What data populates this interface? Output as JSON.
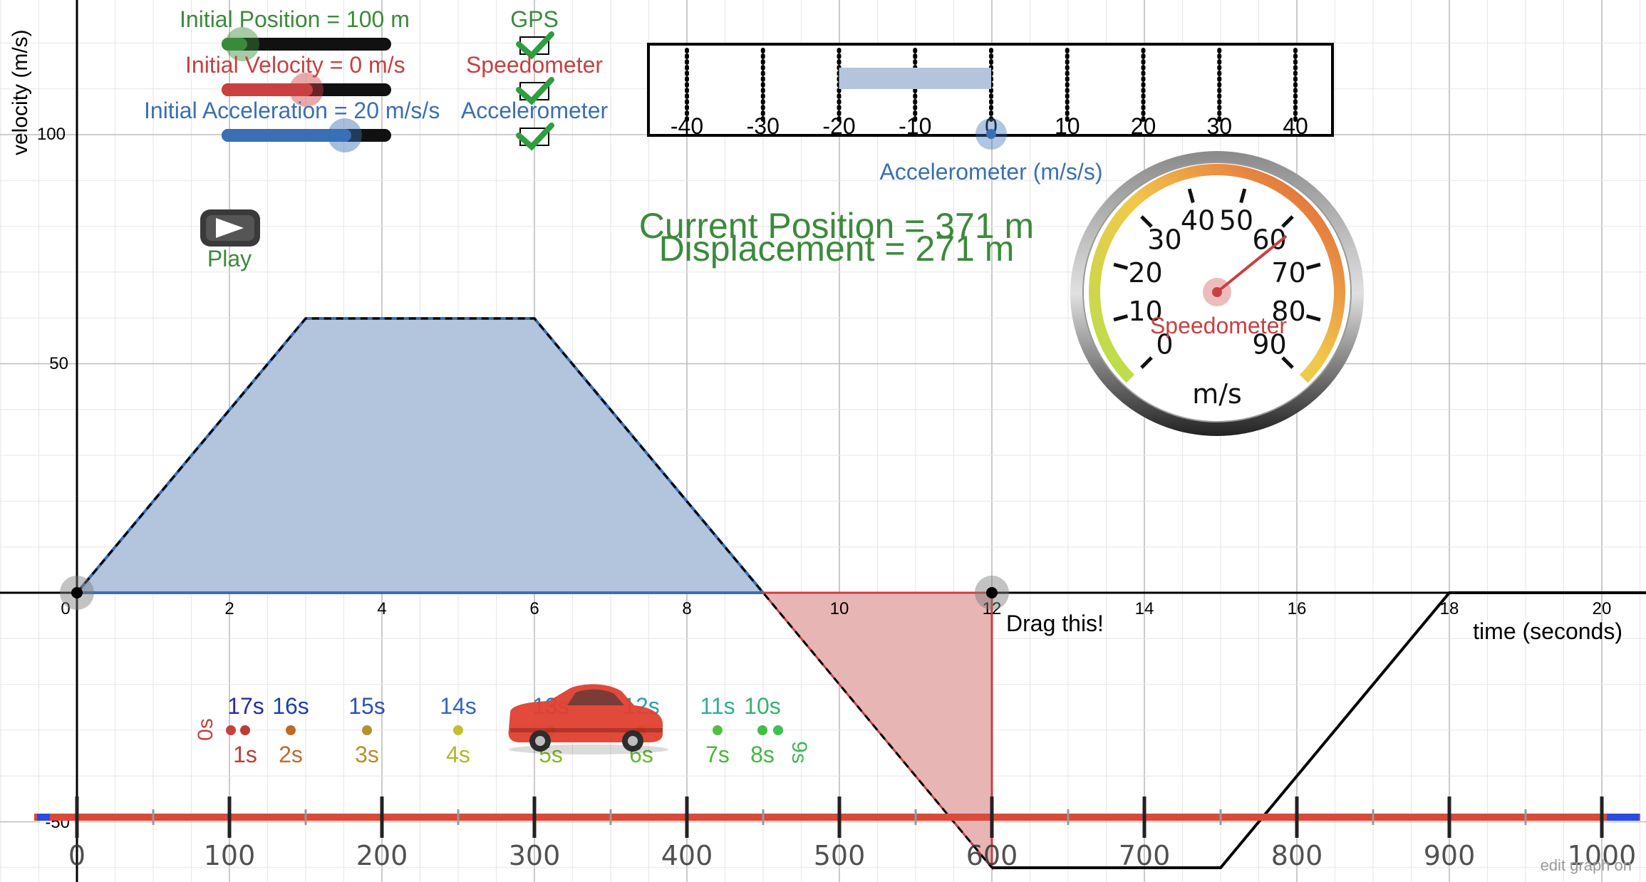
{
  "axes": {
    "ylabel": "velocity (m/s)",
    "xlabel": "time (seconds)",
    "x_ticks": [
      "0",
      "2",
      "4",
      "6",
      "8",
      "10",
      "12",
      "14",
      "16",
      "18",
      "20"
    ],
    "y_ticks": [
      "100",
      "50",
      "-50"
    ]
  },
  "sliders": {
    "position_label": "Initial  Position = 100 m",
    "velocity_label": "Initial Velocity = 0 m/s",
    "acceleration_label": "Initial Acceleration = 20 m/s/s"
  },
  "checkboxes": {
    "gps_label": "GPS",
    "speedometer_label": "Speedometer",
    "accelerometer_label": "Accelerometer"
  },
  "play": {
    "label": "Play"
  },
  "accelerometer": {
    "ticks": [
      "-40",
      "-30",
      "-20",
      "-10",
      "0",
      "10",
      "20",
      "30",
      "40"
    ],
    "caption": "Accelerometer (m/s/s)",
    "reading": -20
  },
  "readouts": {
    "current_position": "Current Position = 371 m",
    "displacement": "Displacement = 271 m"
  },
  "speedometer": {
    "ticks": [
      "0",
      "10",
      "20",
      "30",
      "40",
      "50",
      "60",
      "70",
      "80",
      "90"
    ],
    "label": "Speedometer",
    "unit": "m/s",
    "reading": 62
  },
  "drag_hint": "Drag this!",
  "position_ruler": {
    "ticks": [
      "0",
      "100",
      "200",
      "300",
      "400",
      "500",
      "600",
      "700",
      "800",
      "900",
      "1000"
    ]
  },
  "time_markers": {
    "top": [
      "17s",
      "16s",
      "15s",
      "14s",
      "13s",
      "12s",
      "11s",
      "10s"
    ],
    "bottom": [
      "1s",
      "2s",
      "3s",
      "4s",
      "5s",
      "6s",
      "7s",
      "8s"
    ],
    "rotated": [
      "0s",
      "9s"
    ]
  },
  "footer": {
    "watermark": "edit graph on"
  },
  "colors": {
    "green": "#3b8a3b",
    "red": "#c94040",
    "blue": "#3a6fb5",
    "area_blue": "#b3c4dd",
    "area_red": "#e8b5b5",
    "gauge_red": "#e05a3a"
  }
}
